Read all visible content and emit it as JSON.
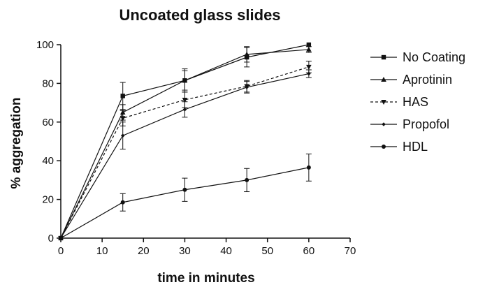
{
  "chart_data": {
    "type": "line",
    "title": "Uncoated glass slides",
    "xlabel": "time in minutes",
    "ylabel": "% aggregation",
    "xlim": [
      0,
      70
    ],
    "ylim": [
      0,
      100
    ],
    "xticks": [
      0,
      10,
      20,
      30,
      40,
      50,
      60,
      70
    ],
    "yticks": [
      0,
      20,
      40,
      60,
      80,
      100
    ],
    "grid": false,
    "legend_position": "right",
    "x": [
      0,
      15,
      30,
      45,
      60
    ],
    "series": [
      {
        "name": "No Coating",
        "marker": "square",
        "dash": false,
        "values": [
          0,
          73.5,
          81.5,
          93.5,
          100
        ],
        "err": [
          0,
          7,
          6,
          5,
          0
        ]
      },
      {
        "name": "Aprotinin",
        "marker": "triangle",
        "dash": false,
        "values": [
          0,
          65,
          81.5,
          95,
          97.5
        ],
        "err": [
          0,
          4,
          5,
          4,
          1.5
        ]
      },
      {
        "name": "HAS",
        "marker": "triangle-down",
        "dash": true,
        "values": [
          0,
          62,
          71.5,
          78.5,
          88.5
        ],
        "err": [
          0,
          4,
          4,
          3,
          3
        ]
      },
      {
        "name": "Propofol",
        "marker": "diamond",
        "dash": false,
        "values": [
          0,
          53,
          66.5,
          78,
          85
        ],
        "err": [
          0,
          7,
          4,
          3,
          2
        ]
      },
      {
        "name": "HDL",
        "marker": "circle",
        "dash": false,
        "values": [
          0,
          18.5,
          25,
          30,
          36.5
        ],
        "err": [
          0,
          4.5,
          6,
          6,
          7
        ]
      }
    ]
  }
}
